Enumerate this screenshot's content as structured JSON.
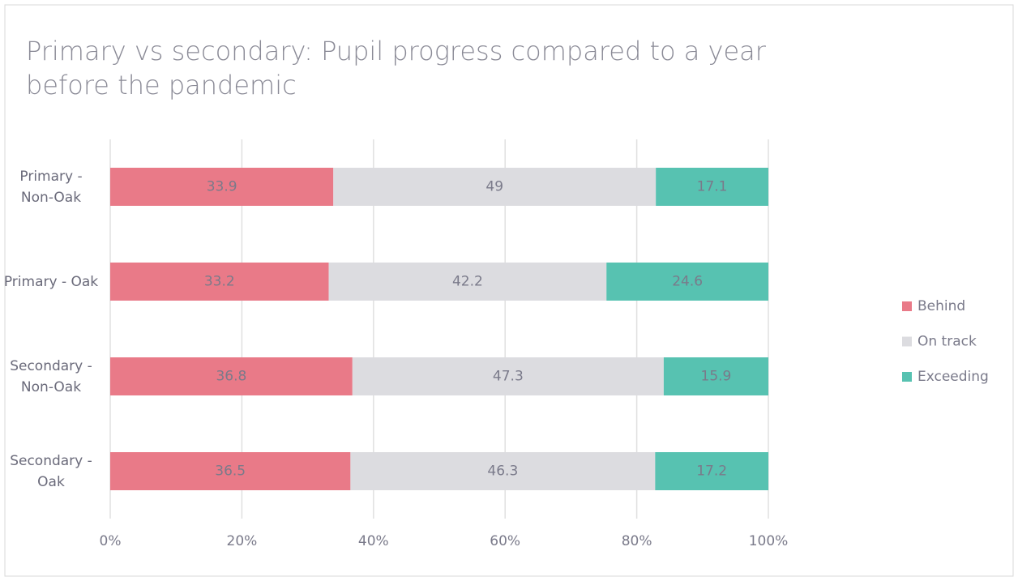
{
  "chart_data": {
    "type": "stacked_barh",
    "title": "Primary vs secondary: Pupil progress compared to a year before the pandemic",
    "categories": [
      "Primary - Non-Oak",
      "Primary - Oak",
      "Secondary - Non-Oak",
      "Secondary - Oak"
    ],
    "series": [
      {
        "name": "Behind",
        "color": "#e97a88",
        "values": [
          33.9,
          33.2,
          36.8,
          36.5
        ]
      },
      {
        "name": "On track",
        "color": "#dcdce0",
        "values": [
          49,
          42.2,
          47.3,
          46.3
        ]
      },
      {
        "name": "Exceeding",
        "color": "#57c2b1",
        "values": [
          17.1,
          24.6,
          15.9,
          17.2
        ]
      }
    ],
    "xlim": [
      0,
      100
    ],
    "xticks": [
      {
        "value": 0,
        "label": "0%"
      },
      {
        "value": 20,
        "label": "20%"
      },
      {
        "value": 40,
        "label": "40%"
      },
      {
        "value": 60,
        "label": "60%"
      },
      {
        "value": 80,
        "label": "80%"
      },
      {
        "value": 100,
        "label": "100%"
      }
    ],
    "grid": true,
    "legend": "right"
  }
}
